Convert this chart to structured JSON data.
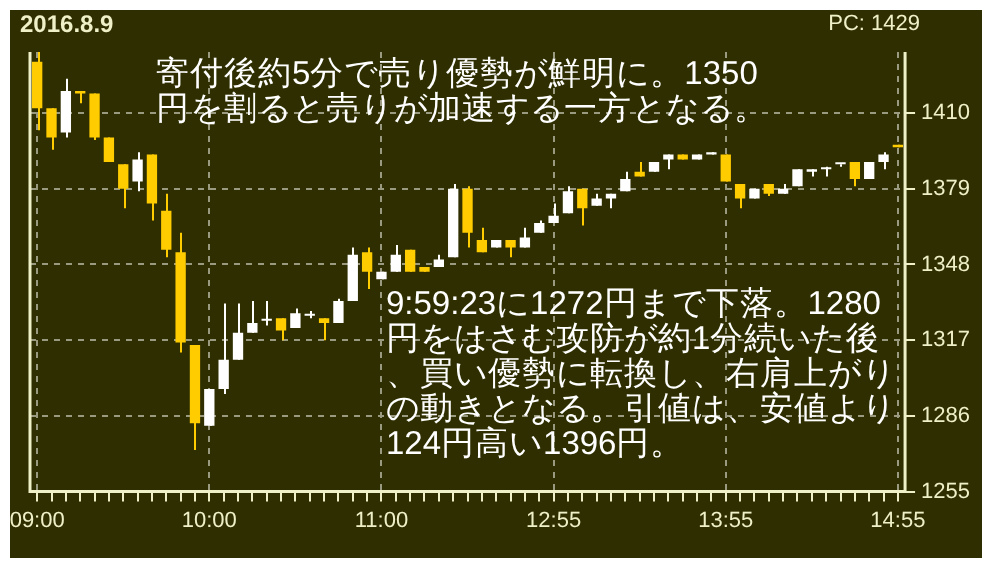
{
  "chart_data": {
    "type": "candlestick",
    "title": "2016.8.9",
    "annotations": [
      "PC: 1429",
      "寄付後約5分で売り優勢が鮮明に。1350円を割ると売りが加速する一方となる。",
      "9:59:23に1272円まで下落。1280円をはさむ攻防が約1分続いた後、買い優勢に転換し、右肩上がりの動きとなる。引値は、安値より124円高い1396円。"
    ],
    "categories": [
      "09:00",
      null,
      null,
      null,
      null,
      null,
      null,
      null,
      null,
      null,
      null,
      null,
      "10:00",
      null,
      null,
      null,
      null,
      null,
      null,
      null,
      null,
      null,
      null,
      null,
      "11:00",
      null,
      null,
      null,
      null,
      null,
      null,
      null,
      null,
      null,
      null,
      null,
      "12:55",
      null,
      null,
      null,
      null,
      null,
      null,
      null,
      null,
      null,
      null,
      null,
      "13:55",
      null,
      null,
      null,
      null,
      null,
      null,
      null,
      null,
      null,
      null,
      null,
      "14:55"
    ],
    "ohlc": [
      [
        1431,
        1435,
        1403,
        1412
      ],
      [
        1412,
        1412,
        1395,
        1400
      ],
      [
        1402,
        1424,
        1400,
        1419
      ],
      [
        1419,
        1419,
        1414,
        1418
      ],
      [
        1418,
        1418,
        1399,
        1400
      ],
      [
        1400,
        1400,
        1390,
        1390
      ],
      [
        1389,
        1389,
        1371,
        1379
      ],
      [
        1382,
        1394,
        1378,
        1391
      ],
      [
        1393,
        1393,
        1366,
        1373
      ],
      [
        1370,
        1377,
        1351,
        1354
      ],
      [
        1353,
        1361,
        1312,
        1316
      ],
      [
        1315,
        1315,
        1272,
        1283
      ],
      [
        1282,
        1297,
        1282,
        1297
      ],
      [
        1297,
        1332,
        1295,
        1309
      ],
      [
        1309,
        1332,
        1309,
        1320
      ],
      [
        1320,
        1333,
        1320,
        1324
      ],
      [
        1325,
        1333,
        1323,
        1325
      ],
      [
        1326,
        1326,
        1317,
        1321
      ],
      [
        1322,
        1330,
        1322,
        1328
      ],
      [
        1327,
        1329,
        1326,
        1327
      ],
      [
        1326,
        1326,
        1317,
        1324
      ],
      [
        1324,
        1334,
        1324,
        1333
      ],
      [
        1333,
        1355,
        1333,
        1352
      ],
      [
        1353,
        1355,
        1338,
        1345
      ],
      [
        1342,
        1345,
        1342,
        1345
      ],
      [
        1345,
        1356,
        1345,
        1352
      ],
      [
        1354,
        1354,
        1345,
        1345
      ],
      [
        1347,
        1347,
        1345,
        1345
      ],
      [
        1347,
        1352,
        1347,
        1350
      ],
      [
        1351,
        1381,
        1351,
        1379
      ],
      [
        1379,
        1380,
        1355,
        1361
      ],
      [
        1358,
        1363,
        1353,
        1353
      ],
      [
        1355,
        1358,
        1355,
        1358
      ],
      [
        1358,
        1358,
        1351,
        1355
      ],
      [
        1355,
        1363,
        1355,
        1359
      ],
      [
        1361,
        1366,
        1361,
        1365
      ],
      [
        1365,
        1373,
        1365,
        1368
      ],
      [
        1369,
        1380,
        1369,
        1378
      ],
      [
        1379,
        1379,
        1364,
        1371
      ],
      [
        1372,
        1377,
        1372,
        1375
      ],
      [
        1375,
        1377,
        1371,
        1377
      ],
      [
        1378,
        1386,
        1378,
        1383
      ],
      [
        1386,
        1390,
        1384,
        1384
      ],
      [
        1386,
        1390,
        1386,
        1390
      ],
      [
        1391,
        1393,
        1387,
        1393
      ],
      [
        1393,
        1393,
        1391,
        1391
      ],
      [
        1391,
        1393,
        1391,
        1393
      ],
      [
        1393,
        1394,
        1393,
        1394
      ],
      [
        1393,
        1393,
        1382,
        1382
      ],
      [
        1381,
        1381,
        1371,
        1375
      ],
      [
        1375,
        1379,
        1375,
        1379
      ],
      [
        1381,
        1381,
        1376,
        1377
      ],
      [
        1377,
        1381,
        1377,
        1379
      ],
      [
        1380,
        1387,
        1380,
        1387
      ],
      [
        1386,
        1387,
        1384,
        1387
      ],
      [
        1387,
        1388,
        1384,
        1387
      ],
      [
        1389,
        1389,
        1388,
        1389
      ],
      [
        1390,
        1390,
        1380,
        1383
      ],
      [
        1383,
        1390,
        1383,
        1390
      ],
      [
        1390,
        1394,
        1387,
        1393
      ],
      [
        1397,
        1397,
        1396,
        1396
      ]
    ],
    "colors": [
      "#ffcc00",
      "#ffcc00",
      "#ffffff",
      "#ffcc00",
      "#ffcc00",
      "#ffcc00",
      "#ffcc00",
      "#ffffff",
      "#ffcc00",
      "#ffcc00",
      "#ffcc00",
      "#ffcc00",
      "#ffffff",
      "#ffffff",
      "#ffffff",
      "#ffffff",
      "#ffffff",
      "#ffcc00",
      "#ffffff",
      "#ffffff",
      "#ffcc00",
      "#ffffff",
      "#ffffff",
      "#ffcc00",
      "#ffffff",
      "#ffffff",
      "#ffcc00",
      "#ffcc00",
      "#ffffff",
      "#ffffff",
      "#ffcc00",
      "#ffcc00",
      "#ffffff",
      "#ffcc00",
      "#ffffff",
      "#ffffff",
      "#ffffff",
      "#ffffff",
      "#ffcc00",
      "#ffffff",
      "#ffffff",
      "#ffffff",
      "#ffcc00",
      "#ffffff",
      "#ffffff",
      "#ffcc00",
      "#ffffff",
      "#ffffff",
      "#ffcc00",
      "#ffcc00",
      "#ffffff",
      "#ffcc00",
      "#ffffff",
      "#ffffff",
      "#ffffff",
      "#ffffff",
      "#ffffff",
      "#ffcc00",
      "#ffffff",
      "#ffffff",
      "#ffcc00"
    ],
    "ylim": [
      1255,
      1435
    ],
    "yticks": [
      1255,
      1286,
      1317,
      1348,
      1379,
      1410
    ],
    "grid": true
  }
}
